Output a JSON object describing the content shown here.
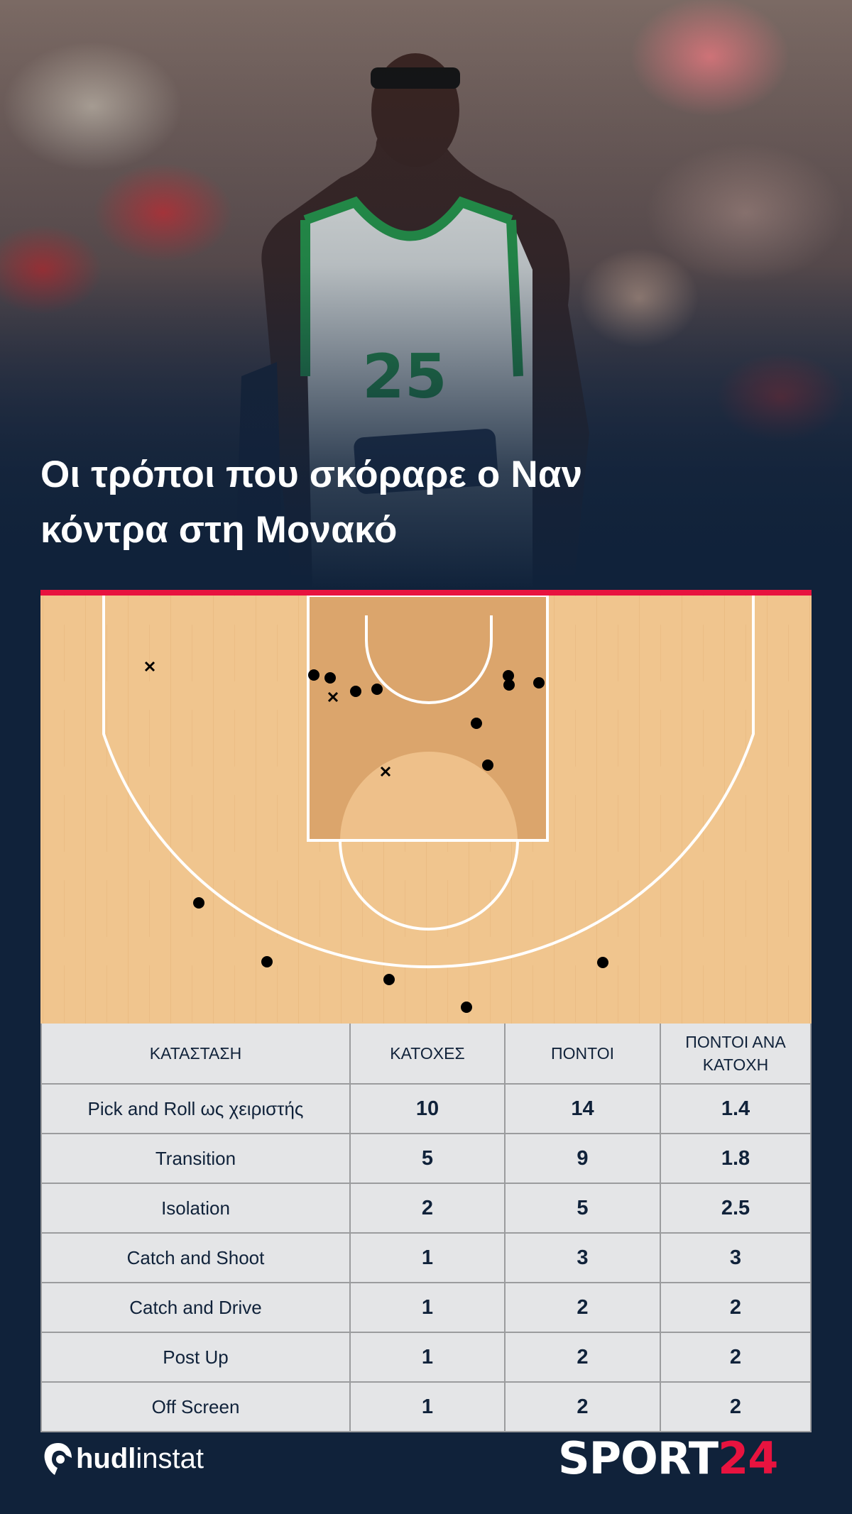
{
  "header": {
    "title_line1": "Οι τρόποι που σκόραρε ο Ναν",
    "title_line2": "κόντρα στη Μονακό",
    "jersey_number": "25"
  },
  "shot_chart": {
    "made_marker": "dot",
    "missed_marker": "x",
    "court_color": "#f0c58e",
    "paint_color": "#dba56c"
  },
  "table": {
    "columns": [
      "ΚΑΤΑΣΤΑΣΗ",
      "ΚΑΤΟΧΕΣ",
      "ΠΟΝΤΟΙ",
      "ΠΟΝΤΟΙ ΑΝΑ ΚΑΤΟΧΗ"
    ],
    "rows": [
      [
        "Pick and Roll ως χειριστής",
        "10",
        "14",
        "1.4"
      ],
      [
        "Transition",
        "5",
        "9",
        "1.8"
      ],
      [
        "Isolation",
        "2",
        "5",
        "2.5"
      ],
      [
        "Catch and Shoot",
        "1",
        "3",
        "3"
      ],
      [
        "Catch and Drive",
        "1",
        "2",
        "2"
      ],
      [
        "Post Up",
        "1",
        "2",
        "2"
      ],
      [
        "Off Screen",
        "1",
        "2",
        "2"
      ]
    ]
  },
  "footer": {
    "hudl_bold": "hudl",
    "hudl_light": "instat",
    "sport_white": "SPORT",
    "sport_red": "24"
  },
  "colors": {
    "accent": "#e8133f",
    "background": "#10223a",
    "table_bg": "#e4e5e7"
  }
}
